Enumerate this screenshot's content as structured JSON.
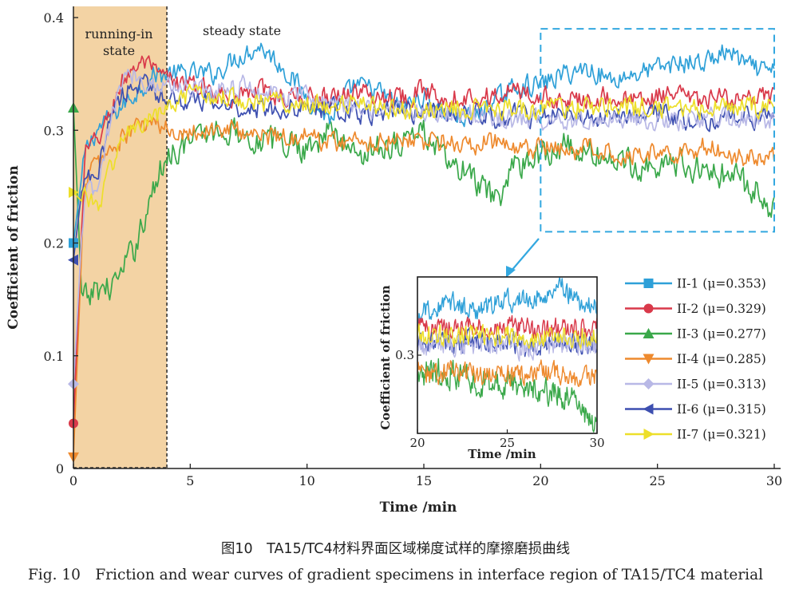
{
  "chart_data": {
    "type": "line",
    "main": {
      "xlabel": "Time /min",
      "ylabel": "Coefficient of friction",
      "xlim": [
        0,
        30
      ],
      "ylim": [
        0,
        0.4
      ],
      "xticks": [
        0,
        5,
        10,
        15,
        20,
        25,
        30
      ],
      "yticks": [
        0,
        0.1,
        0.2,
        0.3,
        0.4
      ],
      "ytick_labels": [
        "0",
        "0.1",
        "0.2",
        "0.3",
        "0.4"
      ],
      "grid": false,
      "legend_position": "bottom-right",
      "annotations": {
        "running_in_line1": "running-in",
        "running_in_line2": "state",
        "steady": "steady state"
      },
      "running_in_region": [
        0,
        4
      ],
      "zoom_region": {
        "x": [
          20,
          30
        ],
        "y": [
          0.21,
          0.39
        ]
      }
    },
    "inset": {
      "xlabel": "Time /min",
      "ylabel": "Coefficient of friction",
      "xlim": [
        20,
        30
      ],
      "ylim": [
        0.22,
        0.38
      ],
      "xticks": [
        20,
        25,
        30
      ],
      "yticks": [
        0.3
      ]
    },
    "series": [
      {
        "name": "II-1 (μ=0.353)",
        "label": "II-1",
        "mu": "0.353",
        "color": "#2ea0d8",
        "marker": "square",
        "x": [
          0,
          0.5,
          1,
          1.5,
          2,
          2.5,
          3,
          3.5,
          4,
          5,
          6,
          7,
          8,
          9,
          10,
          11,
          12,
          13,
          14,
          15,
          16,
          17,
          18,
          19,
          20,
          21,
          22,
          23,
          24,
          25,
          26,
          27,
          28,
          29,
          30
        ],
        "y": [
          0.2,
          0.28,
          0.3,
          0.31,
          0.32,
          0.33,
          0.34,
          0.35,
          0.35,
          0.35,
          0.35,
          0.365,
          0.375,
          0.355,
          0.33,
          0.31,
          0.34,
          0.335,
          0.32,
          0.33,
          0.315,
          0.31,
          0.325,
          0.34,
          0.34,
          0.35,
          0.355,
          0.345,
          0.35,
          0.355,
          0.36,
          0.36,
          0.37,
          0.355,
          0.35
        ]
      },
      {
        "name": "II-2 (μ=0.329)",
        "label": "II-2",
        "mu": "0.329",
        "color": "#d9394a",
        "marker": "circle",
        "x": [
          0,
          0.5,
          1,
          1.5,
          2,
          2.5,
          3,
          3.5,
          4,
          5,
          6,
          7,
          8,
          9,
          10,
          11,
          12,
          13,
          14,
          15,
          16,
          17,
          18,
          19,
          20,
          21,
          22,
          23,
          24,
          25,
          26,
          27,
          28,
          29,
          30
        ],
        "y": [
          0.04,
          0.28,
          0.29,
          0.31,
          0.34,
          0.355,
          0.36,
          0.35,
          0.345,
          0.34,
          0.335,
          0.33,
          0.335,
          0.33,
          0.33,
          0.33,
          0.335,
          0.33,
          0.33,
          0.335,
          0.33,
          0.33,
          0.33,
          0.335,
          0.33,
          0.325,
          0.33,
          0.33,
          0.325,
          0.33,
          0.33,
          0.325,
          0.33,
          0.325,
          0.33
        ]
      },
      {
        "name": "II-3 (μ=0.277)",
        "label": "II-3",
        "mu": "0.277",
        "color": "#3aa84a",
        "marker": "triangle-up",
        "x": [
          0,
          0.3,
          0.6,
          1,
          1.5,
          2,
          2.5,
          3,
          3.5,
          4,
          5,
          6,
          7,
          8,
          9,
          10,
          11,
          12,
          13,
          14,
          15,
          16,
          17,
          18,
          19,
          20,
          21,
          22,
          23,
          24,
          25,
          26,
          27,
          28,
          29,
          30
        ],
        "y": [
          0.32,
          0.15,
          0.15,
          0.16,
          0.16,
          0.17,
          0.19,
          0.22,
          0.25,
          0.28,
          0.29,
          0.3,
          0.3,
          0.29,
          0.29,
          0.285,
          0.3,
          0.28,
          0.285,
          0.29,
          0.3,
          0.27,
          0.26,
          0.235,
          0.27,
          0.28,
          0.285,
          0.28,
          0.275,
          0.27,
          0.27,
          0.27,
          0.265,
          0.26,
          0.25,
          0.23
        ]
      },
      {
        "name": "II-4 (μ=0.285)",
        "label": "II-4",
        "mu": "0.285",
        "color": "#ee8a2e",
        "marker": "triangle-down",
        "x": [
          0,
          0.5,
          1,
          1.5,
          2,
          2.5,
          3,
          3.5,
          4,
          5,
          6,
          7,
          8,
          9,
          10,
          11,
          12,
          13,
          14,
          15,
          16,
          17,
          18,
          19,
          20,
          21,
          22,
          23,
          24,
          25,
          26,
          27,
          28,
          29,
          30
        ],
        "y": [
          0.01,
          0.26,
          0.27,
          0.28,
          0.29,
          0.3,
          0.305,
          0.305,
          0.3,
          0.3,
          0.3,
          0.3,
          0.295,
          0.295,
          0.295,
          0.29,
          0.29,
          0.29,
          0.295,
          0.29,
          0.29,
          0.285,
          0.29,
          0.28,
          0.285,
          0.28,
          0.285,
          0.28,
          0.28,
          0.28,
          0.28,
          0.285,
          0.28,
          0.275,
          0.28
        ]
      },
      {
        "name": "II-5 (μ=0.313)",
        "label": "II-5",
        "mu": "0.313",
        "color": "#b8b8e6",
        "marker": "diamond",
        "x": [
          0,
          0.5,
          1,
          1.5,
          2,
          2.5,
          3,
          3.5,
          4,
          5,
          6,
          7,
          8,
          9,
          10,
          11,
          12,
          13,
          14,
          15,
          16,
          17,
          18,
          19,
          20,
          21,
          22,
          23,
          24,
          25,
          26,
          27,
          28,
          29,
          30
        ],
        "y": [
          0.075,
          0.25,
          0.24,
          0.3,
          0.34,
          0.35,
          0.345,
          0.34,
          0.34,
          0.34,
          0.335,
          0.34,
          0.335,
          0.33,
          0.33,
          0.325,
          0.32,
          0.32,
          0.32,
          0.315,
          0.315,
          0.315,
          0.31,
          0.31,
          0.31,
          0.31,
          0.31,
          0.31,
          0.31,
          0.31,
          0.305,
          0.31,
          0.31,
          0.31,
          0.31
        ]
      },
      {
        "name": "II-6 (μ=0.315)",
        "label": "II-6",
        "mu": "0.315",
        "color": "#3d4fb0",
        "marker": "triangle-left",
        "x": [
          0,
          0.5,
          1,
          1.5,
          2,
          2.5,
          3,
          3.5,
          4,
          5,
          6,
          7,
          8,
          9,
          10,
          11,
          12,
          13,
          14,
          15,
          16,
          17,
          18,
          19,
          20,
          21,
          22,
          23,
          24,
          25,
          26,
          27,
          28,
          29,
          30
        ],
        "y": [
          0.185,
          0.26,
          0.25,
          0.31,
          0.33,
          0.34,
          0.34,
          0.335,
          0.33,
          0.325,
          0.325,
          0.32,
          0.32,
          0.32,
          0.32,
          0.32,
          0.315,
          0.315,
          0.32,
          0.315,
          0.315,
          0.315,
          0.31,
          0.315,
          0.31,
          0.315,
          0.31,
          0.315,
          0.31,
          0.315,
          0.31,
          0.31,
          0.315,
          0.31,
          0.315
        ]
      },
      {
        "name": "II-7 (μ=0.321)",
        "label": "II-7",
        "mu": "0.321",
        "color": "#eddf2a",
        "marker": "triangle-right",
        "x": [
          0,
          0.5,
          1,
          1.5,
          2,
          2.5,
          3,
          3.5,
          4,
          5,
          6,
          7,
          8,
          9,
          10,
          11,
          12,
          13,
          14,
          15,
          16,
          17,
          18,
          19,
          20,
          21,
          22,
          23,
          24,
          25,
          26,
          27,
          28,
          29,
          30
        ],
        "y": [
          0.245,
          0.245,
          0.23,
          0.26,
          0.29,
          0.3,
          0.305,
          0.31,
          0.32,
          0.33,
          0.33,
          0.33,
          0.325,
          0.325,
          0.325,
          0.32,
          0.325,
          0.32,
          0.32,
          0.32,
          0.32,
          0.32,
          0.32,
          0.32,
          0.32,
          0.32,
          0.32,
          0.32,
          0.32,
          0.32,
          0.32,
          0.32,
          0.32,
          0.32,
          0.32
        ]
      }
    ]
  },
  "caption": {
    "cn": "图10　TA15/TC4材料界面区域梯度试样的摩擦磨损曲线",
    "en": "Fig. 10　Friction and wear curves of gradient specimens in interface region of TA15/TC4 material"
  }
}
